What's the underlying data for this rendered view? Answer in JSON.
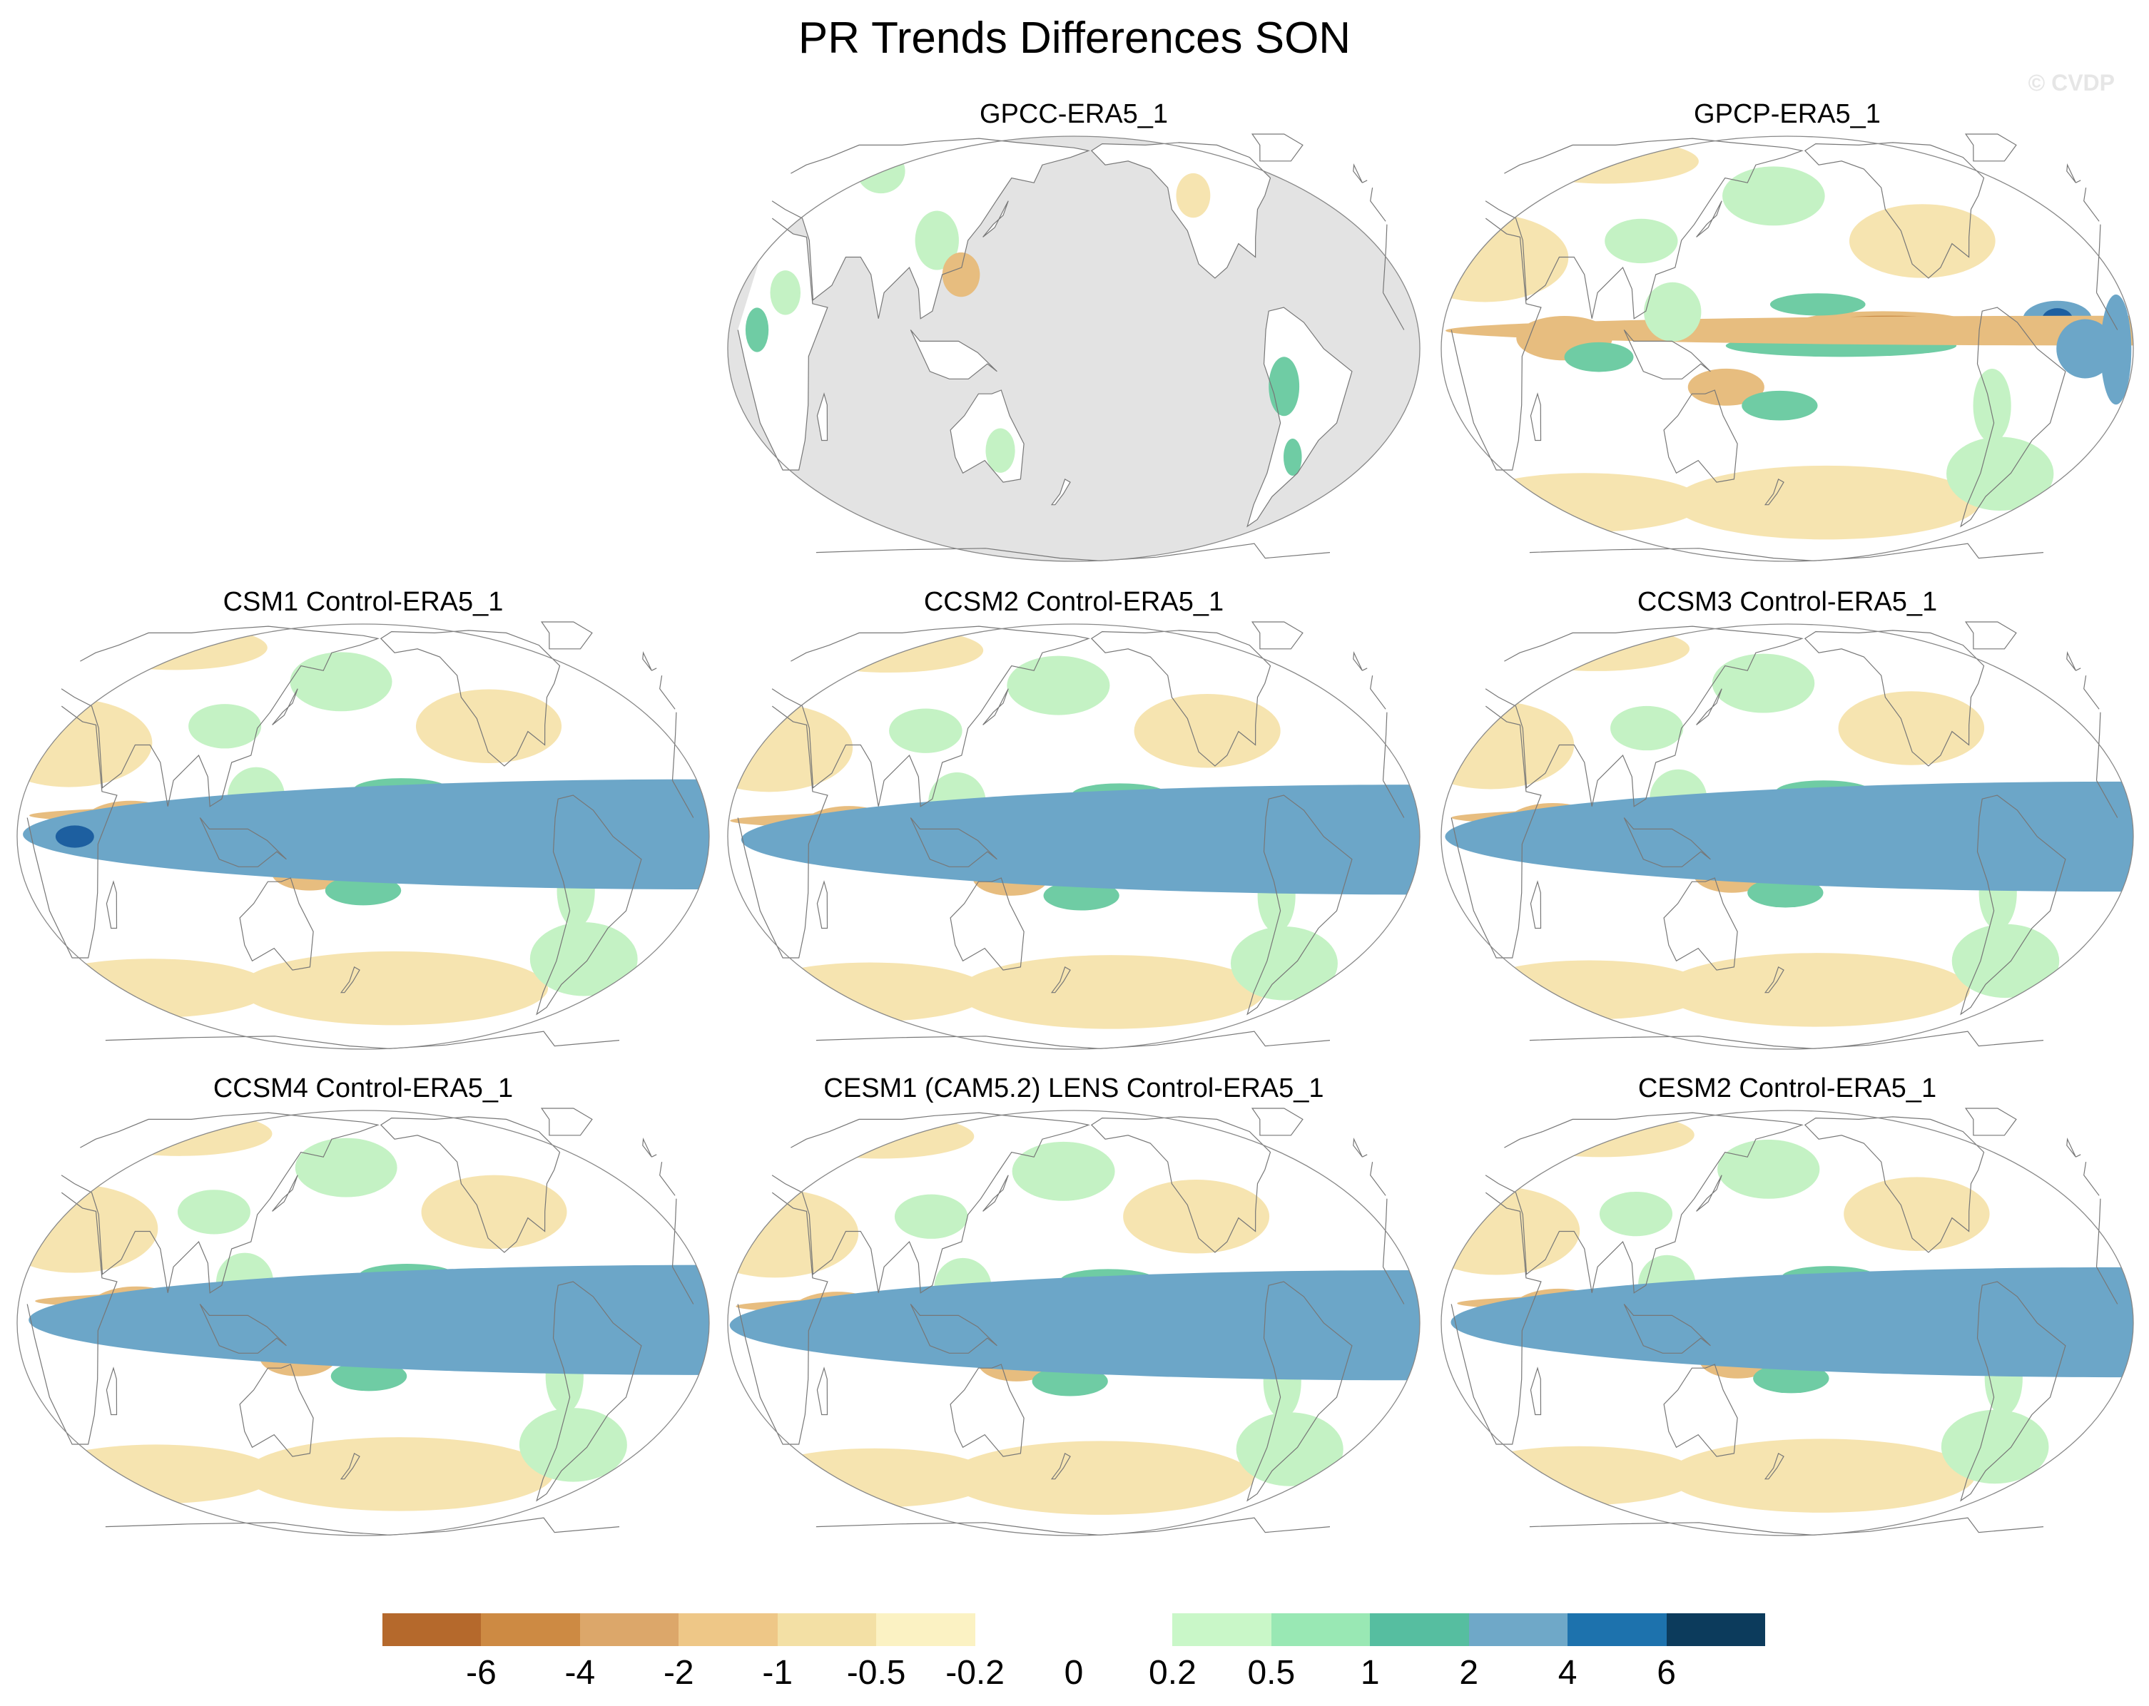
{
  "figure": {
    "title": "PR Trends Differences SON",
    "watermark": "© CVDP"
  },
  "panels": [
    {
      "id": "gpcc",
      "title": "GPCC-ERA5_1",
      "style": "land-only"
    },
    {
      "id": "gpcp",
      "title": "GPCP-ERA5_1",
      "style": "global"
    },
    {
      "id": "csm1",
      "title": "CSM1 Control-ERA5_1",
      "style": "global"
    },
    {
      "id": "ccsm2",
      "title": "CCSM2 Control-ERA5_1",
      "style": "global"
    },
    {
      "id": "ccsm3",
      "title": "CCSM3 Control-ERA5_1",
      "style": "global"
    },
    {
      "id": "ccsm4",
      "title": "CCSM4 Control-ERA5_1",
      "style": "global"
    },
    {
      "id": "cesm1",
      "title": "CESM1 (CAM5.2) LENS Control-ERA5_1",
      "style": "global"
    },
    {
      "id": "cesm2",
      "title": "CESM2 Control-ERA5_1",
      "style": "global"
    }
  ],
  "colorbar": {
    "colors": [
      "#b5692c",
      "#cd8a43",
      "#dca76a",
      "#eec787",
      "#f3e0a5",
      "#fbf2c3",
      "#ffffff",
      "#ffffff",
      "#c9f7c8",
      "#99e8b4",
      "#56bea0",
      "#6fa8c8",
      "#1d72ad",
      "#0c3b5c"
    ],
    "labels": [
      "-6",
      "-4",
      "-2",
      "-1",
      "-0.5",
      "-0.2",
      "0",
      "0.2",
      "0.5",
      "1",
      "2",
      "4",
      "6"
    ]
  },
  "map_colors": {
    "ocean_mask": "#e3e3e3",
    "dry_strong": "#c98a45",
    "dry_mod": "#e7bd7f",
    "dry_weak": "#f6e4b0",
    "wet_weak": "#c4f2c4",
    "wet_mod": "#6fcca4",
    "wet_strong": "#6ca6c8",
    "wet_max": "#1d5fa0",
    "coast": "#777777"
  }
}
